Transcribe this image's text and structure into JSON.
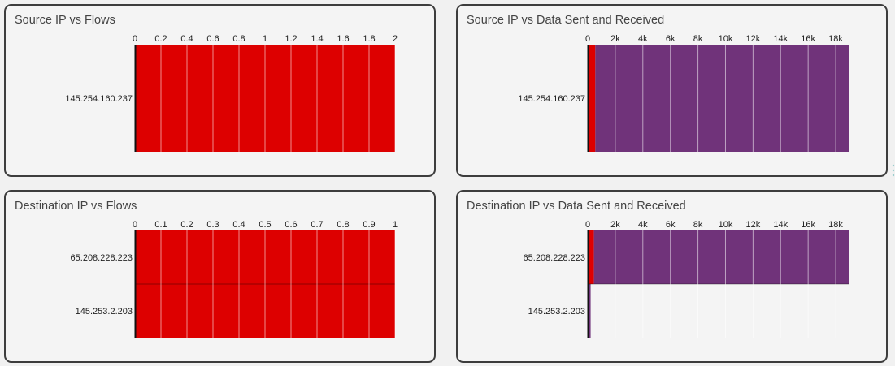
{
  "panels": [
    {
      "title": "Source IP vs Flows",
      "chart_data": {
        "type": "bar",
        "orientation": "horizontal",
        "stacked": true,
        "title": "Source IP vs Flows",
        "categories": [
          "145.254.160.237"
        ],
        "series": [
          {
            "values": [
              2
            ],
            "color": "#dd0000"
          }
        ],
        "xlim": [
          0,
          2
        ],
        "xticks": [
          0,
          0.2,
          0.4,
          0.6,
          0.8,
          1,
          1.2,
          1.4,
          1.6,
          1.8,
          2
        ],
        "xtick_labels": [
          "0",
          "0.2",
          "0.4",
          "0.6",
          "0.8",
          "1",
          "1.2",
          "1.4",
          "1.6",
          "1.8",
          "2"
        ],
        "axis_position": "top",
        "grid": true
      }
    },
    {
      "title": "Source IP vs Data Sent and Received",
      "chart_data": {
        "type": "bar",
        "orientation": "horizontal",
        "stacked": true,
        "title": "Source IP vs Data Sent and Received",
        "categories": [
          "145.254.160.237"
        ],
        "series": [
          {
            "values": [
              550
            ],
            "color": "#dd0000"
          },
          {
            "values": [
              18450
            ],
            "color": "#70337a"
          }
        ],
        "xlim": [
          0,
          19000
        ],
        "xticks": [
          0,
          2000,
          4000,
          6000,
          8000,
          10000,
          12000,
          14000,
          16000,
          18000
        ],
        "xtick_labels": [
          "0",
          "2k",
          "4k",
          "6k",
          "8k",
          "10k",
          "12k",
          "14k",
          "16k",
          "18k"
        ],
        "axis_position": "top",
        "grid": true
      }
    },
    {
      "title": "Destination IP vs Flows",
      "chart_data": {
        "type": "bar",
        "orientation": "horizontal",
        "stacked": true,
        "title": "Destination IP vs Flows",
        "categories": [
          "65.208.228.223",
          "145.253.2.203"
        ],
        "series": [
          {
            "values": [
              1,
              1
            ],
            "color": "#dd0000"
          }
        ],
        "xlim": [
          0,
          1
        ],
        "xticks": [
          0,
          0.1,
          0.2,
          0.3,
          0.4,
          0.5,
          0.6,
          0.7,
          0.8,
          0.9,
          1
        ],
        "xtick_labels": [
          "0",
          "0.1",
          "0.2",
          "0.3",
          "0.4",
          "0.5",
          "0.6",
          "0.7",
          "0.8",
          "0.9",
          "1"
        ],
        "axis_position": "top",
        "grid": true
      }
    },
    {
      "title": "Destination IP vs Data Sent and Received",
      "chart_data": {
        "type": "bar",
        "orientation": "horizontal",
        "stacked": true,
        "title": "Destination IP vs Data Sent and Received",
        "categories": [
          "65.208.228.223",
          "145.253.2.203"
        ],
        "series": [
          {
            "values": [
              450,
              60
            ],
            "color": "#dd0000"
          },
          {
            "values": [
              18550,
              150
            ],
            "color": "#70337a"
          }
        ],
        "xlim": [
          0,
          19000
        ],
        "xticks": [
          0,
          2000,
          4000,
          6000,
          8000,
          10000,
          12000,
          14000,
          16000,
          18000
        ],
        "xtick_labels": [
          "0",
          "2k",
          "4k",
          "6k",
          "8k",
          "10k",
          "12k",
          "14k",
          "16k",
          "18k"
        ],
        "axis_position": "top",
        "grid": true
      }
    }
  ]
}
